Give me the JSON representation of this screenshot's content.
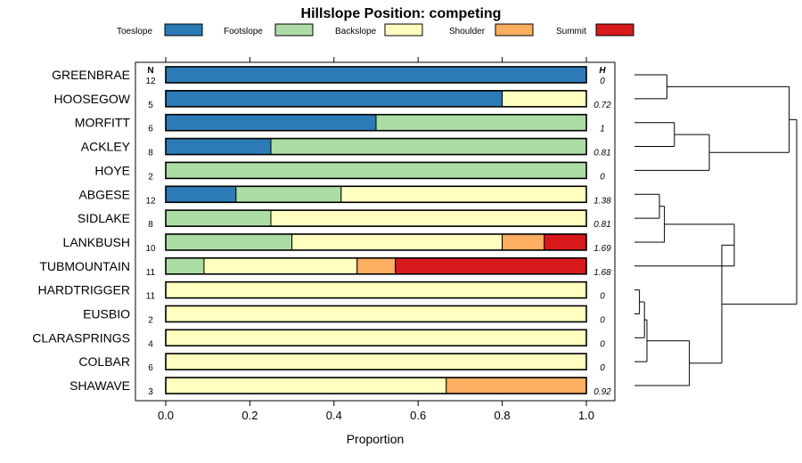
{
  "chart_data": {
    "type": "bar",
    "stacked": true,
    "orientation": "horizontal",
    "title": "Hillslope Position: competing",
    "xlabel": "Proportion",
    "ylabel": "",
    "xlim": [
      0,
      1
    ],
    "x_ticks": [
      "0.0",
      "0.2",
      "0.4",
      "0.6",
      "0.8",
      "1.0"
    ],
    "n_header": "N",
    "h_header": "H",
    "legend_position": "top",
    "series": [
      {
        "name": "Toeslope",
        "color": "#2c7bb6"
      },
      {
        "name": "Footslope",
        "color": "#abdda4"
      },
      {
        "name": "Backslope",
        "color": "#ffffbf"
      },
      {
        "name": "Shoulder",
        "color": "#fdae61"
      },
      {
        "name": "Summit",
        "color": "#d7191c"
      }
    ],
    "rows": [
      {
        "label": "GREENBRAE",
        "n": "12",
        "h": "0",
        "values": [
          1.0,
          0,
          0,
          0,
          0
        ]
      },
      {
        "label": "HOOSEGOW",
        "n": "5",
        "h": "0.72",
        "values": [
          0.8,
          0,
          0.2,
          0,
          0
        ]
      },
      {
        "label": "MORFITT",
        "n": "6",
        "h": "1",
        "values": [
          0.5,
          0.5,
          0,
          0,
          0
        ]
      },
      {
        "label": "ACKLEY",
        "n": "8",
        "h": "0.81",
        "values": [
          0.25,
          0.75,
          0,
          0,
          0
        ]
      },
      {
        "label": "HOYE",
        "n": "2",
        "h": "0",
        "values": [
          0,
          1.0,
          0,
          0,
          0
        ]
      },
      {
        "label": "ABGESE",
        "n": "12",
        "h": "1.38",
        "values": [
          0.167,
          0.25,
          0.583,
          0,
          0
        ]
      },
      {
        "label": "SIDLAKE",
        "n": "8",
        "h": "0.81",
        "values": [
          0,
          0.25,
          0.75,
          0,
          0
        ]
      },
      {
        "label": "LANKBUSH",
        "n": "10",
        "h": "1.69",
        "values": [
          0,
          0.3,
          0.5,
          0.1,
          0.1
        ]
      },
      {
        "label": "TUBMOUNTAIN",
        "n": "11",
        "h": "1.68",
        "values": [
          0,
          0.091,
          0.364,
          0.091,
          0.454
        ]
      },
      {
        "label": "HARDTRIGGER",
        "n": "11",
        "h": "0",
        "values": [
          0,
          0,
          1.0,
          0,
          0
        ]
      },
      {
        "label": "EUSBIO",
        "n": "2",
        "h": "0",
        "values": [
          0,
          0,
          1.0,
          0,
          0
        ]
      },
      {
        "label": "CLARASPRINGS",
        "n": "4",
        "h": "0",
        "values": [
          0,
          0,
          1.0,
          0,
          0
        ]
      },
      {
        "label": "COLBAR",
        "n": "6",
        "h": "0",
        "values": [
          0,
          0,
          1.0,
          0,
          0
        ]
      },
      {
        "label": "SHAWAVE",
        "n": "3",
        "h": "0.92",
        "values": [
          0,
          0,
          0.667,
          0.333,
          0
        ]
      }
    ],
    "dendrogram": {
      "leaf_order": [
        "GREENBRAE",
        "HOOSEGOW",
        "MORFITT",
        "ACKLEY",
        "HOYE",
        "ABGESE",
        "SIDLAKE",
        "LANKBUSH",
        "TUBMOUNTAIN",
        "HARDTRIGGER",
        "EUSBIO",
        "CLARASPRINGS",
        "COLBAR",
        "SHAWAVE"
      ],
      "merges": [
        {
          "a": 0,
          "b": 1,
          "height": 0.13
        },
        {
          "a": 2,
          "b": 3,
          "height": 0.16
        },
        {
          "a": "m1",
          "b": 4,
          "height": 0.3
        },
        {
          "a": "m0",
          "b": "m2",
          "height": 0.62
        },
        {
          "a": 5,
          "b": 6,
          "height": 0.1
        },
        {
          "a": "m4",
          "b": 7,
          "height": 0.12
        },
        {
          "a": "m5",
          "b": 8,
          "height": 0.4
        },
        {
          "a": 9,
          "b": 10,
          "height": 0.02
        },
        {
          "a": "m7",
          "b": 11,
          "height": 0.04
        },
        {
          "a": "m8",
          "b": 12,
          "height": 0.05
        },
        {
          "a": "m9",
          "b": 13,
          "height": 0.22
        },
        {
          "a": "m6",
          "b": "m10",
          "height": 0.35
        },
        {
          "a": "m3",
          "b": "m11",
          "height": 0.65
        }
      ]
    }
  }
}
